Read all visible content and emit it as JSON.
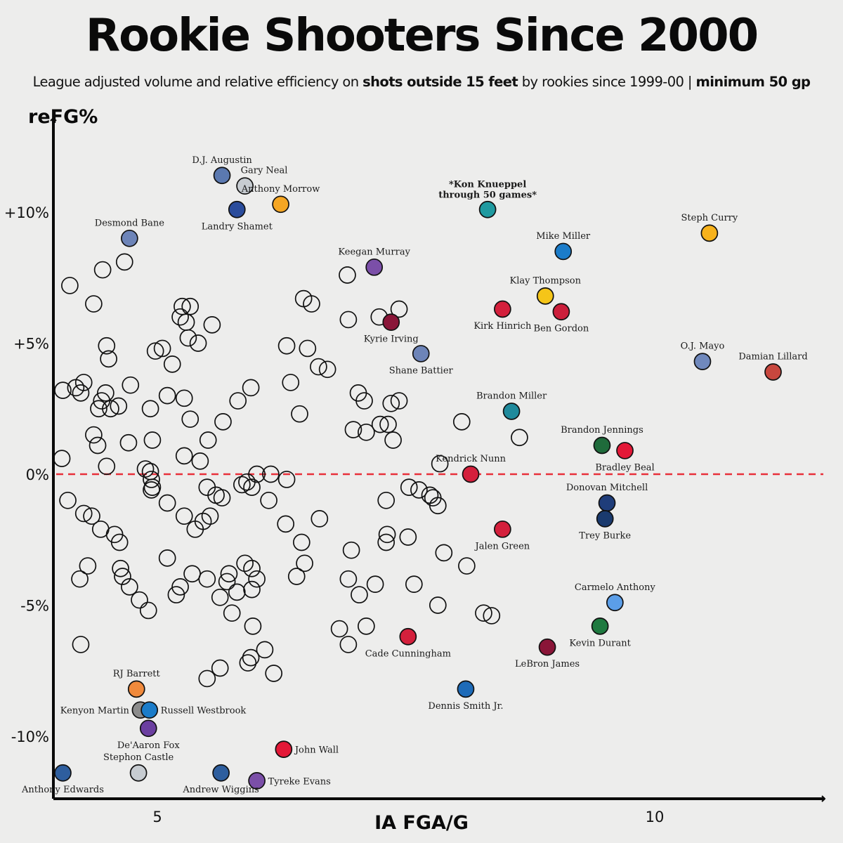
{
  "title": "Rookie Shooters Since 2000",
  "subtitle": {
    "part1": "League adjusted volume and relative efficiency on ",
    "bold1": "shots outside 15 feet",
    "part2": " by rookies since 1999-00 | ",
    "bold2": "minimum 50 gp"
  },
  "chart_data": {
    "type": "scatter",
    "xlabel": "IA FGA/G",
    "ylabel": "reFG%",
    "xlim": [
      3.9,
      11.6
    ],
    "ylim": [
      -12.0,
      13.8
    ],
    "x_ticks": [
      {
        "value": 5,
        "label": "5"
      },
      {
        "value": 10,
        "label": "10"
      }
    ],
    "y_ticks": [
      {
        "value": 10,
        "label": "+10%"
      },
      {
        "value": 5,
        "label": "+5%"
      },
      {
        "value": 0,
        "label": "0%"
      },
      {
        "value": -5,
        "label": "-5%"
      },
      {
        "value": -10,
        "label": "-10%"
      }
    ],
    "reference_line": {
      "y": 0,
      "color": "#e8303a",
      "style": "dashed"
    },
    "grid": false,
    "highlighted": [
      {
        "name": "D.J. Augustin",
        "x": 5.65,
        "y": 11.4,
        "color": "#5b79b0",
        "label_pos": "above"
      },
      {
        "name": "Gary Neal",
        "x": 5.88,
        "y": 11.0,
        "color": "#c7ccd1",
        "label_pos": "above-right"
      },
      {
        "name": "Anthony Morrow",
        "x": 6.24,
        "y": 10.3,
        "color": "#f5a623",
        "label_pos": "above"
      },
      {
        "name": "Landry Shamet",
        "x": 5.8,
        "y": 10.1,
        "color": "#2a4c9c",
        "label_pos": "below"
      },
      {
        "name": "Desmond Bane",
        "x": 4.72,
        "y": 9.0,
        "color": "#6d84b8",
        "label_pos": "above"
      },
      {
        "name": "*Kon Knueppel through 50 games*",
        "x": 8.32,
        "y": 10.1,
        "color": "#1f9aa0",
        "label_pos": "above",
        "bold": true
      },
      {
        "name": "Steph Curry",
        "x": 10.55,
        "y": 9.2,
        "color": "#f7b21c",
        "label_pos": "above"
      },
      {
        "name": "Mike Miller",
        "x": 9.08,
        "y": 8.5,
        "color": "#1b7cc9",
        "label_pos": "above"
      },
      {
        "name": "Keegan Murray",
        "x": 7.18,
        "y": 7.9,
        "color": "#7b4fa8",
        "label_pos": "above"
      },
      {
        "name": "Klay Thompson",
        "x": 8.9,
        "y": 6.8,
        "color": "#f5c518",
        "label_pos": "above"
      },
      {
        "name": "Kirk Hinrich",
        "x": 8.47,
        "y": 6.3,
        "color": "#d4203c",
        "label_pos": "below"
      },
      {
        "name": "Ben Gordon",
        "x": 9.06,
        "y": 6.2,
        "color": "#cc1f3b",
        "label_pos": "below"
      },
      {
        "name": "Kyrie Irving",
        "x": 7.35,
        "y": 5.8,
        "color": "#8a1538",
        "label_pos": "below"
      },
      {
        "name": "Shane Battier",
        "x": 7.65,
        "y": 4.6,
        "color": "#6d84b8",
        "label_pos": "below"
      },
      {
        "name": "O.J. Mayo",
        "x": 10.48,
        "y": 4.3,
        "color": "#7089bd",
        "label_pos": "above"
      },
      {
        "name": "Damian Lillard",
        "x": 11.19,
        "y": 3.9,
        "color": "#c8473e",
        "label_pos": "above"
      },
      {
        "name": "Brandon Miller",
        "x": 8.56,
        "y": 2.4,
        "color": "#1f8a9c",
        "label_pos": "above"
      },
      {
        "name": "Brandon Jennings",
        "x": 9.47,
        "y": 1.1,
        "color": "#1f6b3b",
        "label_pos": "above"
      },
      {
        "name": "Bradley Beal",
        "x": 9.7,
        "y": 0.9,
        "color": "#e31837",
        "label_pos": "below"
      },
      {
        "name": "Kendrick Nunn",
        "x": 8.15,
        "y": 0.0,
        "color": "#d4203c",
        "label_pos": "above"
      },
      {
        "name": "Donovan Mitchell",
        "x": 9.52,
        "y": -1.1,
        "color": "#1f3d7a",
        "label_pos": "above"
      },
      {
        "name": "Trey Burke",
        "x": 9.5,
        "y": -1.7,
        "color": "#1a3a6e",
        "label_pos": "below"
      },
      {
        "name": "Jalen Green",
        "x": 8.47,
        "y": -2.1,
        "color": "#d4203c",
        "label_pos": "below"
      },
      {
        "name": "Carmelo Anthony",
        "x": 9.6,
        "y": -4.9,
        "color": "#5b9ee8",
        "label_pos": "above"
      },
      {
        "name": "Kevin Durant",
        "x": 9.45,
        "y": -5.8,
        "color": "#1f7a40",
        "label_pos": "below"
      },
      {
        "name": "Cade Cunningham",
        "x": 7.52,
        "y": -6.2,
        "color": "#d4203c",
        "label_pos": "below"
      },
      {
        "name": "LeBron James",
        "x": 8.92,
        "y": -6.6,
        "color": "#8a1538",
        "label_pos": "below"
      },
      {
        "name": "Dennis Smith Jr.",
        "x": 8.1,
        "y": -8.2,
        "color": "#1e6bb8",
        "label_pos": "below"
      },
      {
        "name": "RJ Barrett",
        "x": 4.79,
        "y": -8.2,
        "color": "#f08a3c",
        "label_pos": "above"
      },
      {
        "name": "Kenyon Martin",
        "x": 4.83,
        "y": -9.0,
        "color": "#8c8c8c",
        "label_pos": "left"
      },
      {
        "name": "Russell Westbrook",
        "x": 4.92,
        "y": -9.0,
        "color": "#1b7cc9",
        "label_pos": "right"
      },
      {
        "name": "De'Aaron Fox",
        "x": 4.91,
        "y": -9.7,
        "color": "#6b3fa0",
        "label_pos": "below"
      },
      {
        "name": "John Wall",
        "x": 6.27,
        "y": -10.5,
        "color": "#e31837",
        "label_pos": "right"
      },
      {
        "name": "Stephon Castle",
        "x": 4.81,
        "y": -11.4,
        "color": "#c7ccd1",
        "label_pos": "above"
      },
      {
        "name": "Anthony Edwards",
        "x": 4.05,
        "y": -11.4,
        "color": "#2e5e9e",
        "label_pos": "below"
      },
      {
        "name": "Andrew Wiggins",
        "x": 5.64,
        "y": -11.4,
        "color": "#2e5e9e",
        "label_pos": "below"
      },
      {
        "name": "Tyreke Evans",
        "x": 6.0,
        "y": -11.7,
        "color": "#7b4fa8",
        "label_pos": "right"
      }
    ],
    "others": [
      [
        4.12,
        7.2
      ],
      [
        4.45,
        7.8
      ],
      [
        4.67,
        8.1
      ],
      [
        4.36,
        6.5
      ],
      [
        5.25,
        6.4
      ],
      [
        5.33,
        6.4
      ],
      [
        5.23,
        6.0
      ],
      [
        5.29,
        5.8
      ],
      [
        5.55,
        5.7
      ],
      [
        5.31,
        5.2
      ],
      [
        5.41,
        5.0
      ],
      [
        4.49,
        4.9
      ],
      [
        4.51,
        4.4
      ],
      [
        4.98,
        4.7
      ],
      [
        5.05,
        4.8
      ],
      [
        5.15,
        4.2
      ],
      [
        4.05,
        3.2
      ],
      [
        4.18,
        3.3
      ],
      [
        4.23,
        3.1
      ],
      [
        4.26,
        3.5
      ],
      [
        4.48,
        3.1
      ],
      [
        4.44,
        2.8
      ],
      [
        4.41,
        2.5
      ],
      [
        4.53,
        2.5
      ],
      [
        4.61,
        2.6
      ],
      [
        4.73,
        3.4
      ],
      [
        4.93,
        2.5
      ],
      [
        5.1,
        3.0
      ],
      [
        5.27,
        2.9
      ],
      [
        4.36,
        1.5
      ],
      [
        4.4,
        1.1
      ],
      [
        4.71,
        1.2
      ],
      [
        4.95,
        1.3
      ],
      [
        4.04,
        0.6
      ],
      [
        4.49,
        0.3
      ],
      [
        5.33,
        2.1
      ],
      [
        5.66,
        2.0
      ],
      [
        5.81,
        2.8
      ],
      [
        5.94,
        3.3
      ],
      [
        5.51,
        1.3
      ],
      [
        5.27,
        0.7
      ],
      [
        5.43,
        0.5
      ],
      [
        4.88,
        0.2
      ],
      [
        4.93,
        0.1
      ],
      [
        4.94,
        -0.2
      ],
      [
        4.95,
        -0.5
      ],
      [
        4.94,
        -0.6
      ],
      [
        5.1,
        -1.1
      ],
      [
        5.5,
        -0.5
      ],
      [
        5.59,
        -0.8
      ],
      [
        5.65,
        -0.9
      ],
      [
        4.1,
        -1.0
      ],
      [
        4.26,
        -1.5
      ],
      [
        4.34,
        -1.6
      ],
      [
        4.43,
        -2.1
      ],
      [
        4.57,
        -2.3
      ],
      [
        4.62,
        -2.6
      ],
      [
        4.3,
        -3.5
      ],
      [
        4.22,
        -4.0
      ],
      [
        4.63,
        -3.6
      ],
      [
        4.65,
        -3.9
      ],
      [
        4.72,
        -4.3
      ],
      [
        4.82,
        -4.8
      ],
      [
        4.91,
        -5.2
      ],
      [
        5.27,
        -1.6
      ],
      [
        5.38,
        -2.1
      ],
      [
        5.46,
        -1.8
      ],
      [
        5.53,
        -1.6
      ],
      [
        5.72,
        -3.8
      ],
      [
        5.7,
        -4.1
      ],
      [
        5.85,
        -0.4
      ],
      [
        5.9,
        -0.3
      ],
      [
        5.95,
        -0.5
      ],
      [
        6.0,
        0.0
      ],
      [
        6.14,
        0.0
      ],
      [
        6.3,
        -0.2
      ],
      [
        6.12,
        -1.0
      ],
      [
        5.88,
        -3.4
      ],
      [
        5.95,
        -3.6
      ],
      [
        6.0,
        -4.0
      ],
      [
        5.8,
        -4.5
      ],
      [
        5.95,
        -4.4
      ],
      [
        5.35,
        -3.8
      ],
      [
        5.5,
        -4.0
      ],
      [
        5.63,
        -4.7
      ],
      [
        5.75,
        -5.3
      ],
      [
        5.19,
        -4.6
      ],
      [
        5.23,
        -4.3
      ],
      [
        5.96,
        -5.8
      ],
      [
        6.08,
        -6.7
      ],
      [
        6.17,
        -7.6
      ],
      [
        5.94,
        -7.0
      ],
      [
        5.91,
        -7.2
      ],
      [
        5.63,
        -7.4
      ],
      [
        5.5,
        -7.8
      ],
      [
        4.23,
        -6.5
      ],
      [
        5.1,
        -3.2
      ],
      [
        6.29,
        -1.9
      ],
      [
        6.45,
        -2.6
      ],
      [
        6.48,
        -3.4
      ],
      [
        6.4,
        -3.9
      ],
      [
        6.63,
        -1.7
      ],
      [
        6.51,
        4.8
      ],
      [
        6.62,
        4.1
      ],
      [
        6.71,
        4.0
      ],
      [
        6.47,
        6.7
      ],
      [
        6.55,
        6.5
      ],
      [
        6.91,
        7.6
      ],
      [
        6.92,
        5.9
      ],
      [
        7.02,
        3.1
      ],
      [
        7.08,
        2.8
      ],
      [
        7.1,
        1.6
      ],
      [
        7.24,
        1.9
      ],
      [
        7.35,
        2.7
      ],
      [
        7.43,
        2.8
      ],
      [
        7.32,
        1.9
      ],
      [
        7.37,
        1.3
      ],
      [
        6.97,
        1.7
      ],
      [
        7.23,
        6.0
      ],
      [
        7.43,
        6.3
      ],
      [
        6.34,
        3.5
      ],
      [
        6.43,
        2.3
      ],
      [
        6.3,
        4.9
      ],
      [
        6.95,
        -2.9
      ],
      [
        6.92,
        -4.0
      ],
      [
        7.03,
        -4.6
      ],
      [
        7.19,
        -4.2
      ],
      [
        7.3,
        -2.6
      ],
      [
        7.3,
        -1.0
      ],
      [
        7.53,
        -0.5
      ],
      [
        7.63,
        -0.6
      ],
      [
        7.74,
        -0.8
      ],
      [
        7.77,
        -0.9
      ],
      [
        7.84,
        0.4
      ],
      [
        7.82,
        -1.2
      ],
      [
        7.88,
        -3.0
      ],
      [
        8.11,
        -3.5
      ],
      [
        7.31,
        -2.3
      ],
      [
        7.52,
        -2.4
      ],
      [
        7.1,
        -5.8
      ],
      [
        6.83,
        -5.9
      ],
      [
        6.92,
        -6.5
      ],
      [
        8.06,
        2.0
      ],
      [
        8.64,
        1.4
      ],
      [
        8.28,
        -5.3
      ],
      [
        8.36,
        -5.4
      ],
      [
        7.58,
        -4.2
      ],
      [
        7.82,
        -5.0
      ]
    ]
  }
}
